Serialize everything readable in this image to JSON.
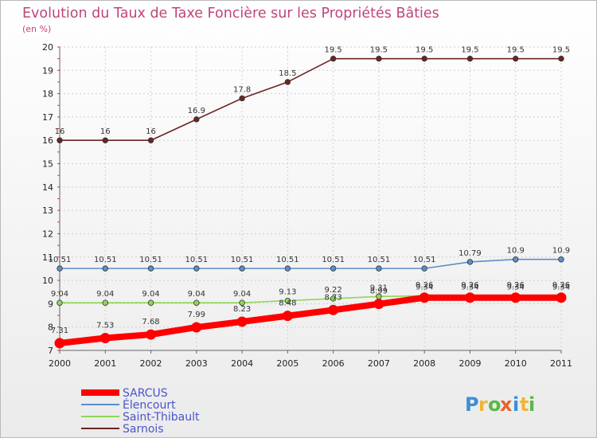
{
  "chart_data": {
    "type": "line",
    "title": "Evolution du Taux de Taxe Foncière sur les Propriétés Bâties",
    "subtitle": "(en %)",
    "xlabel": "",
    "ylabel": "",
    "ylim": [
      7,
      20
    ],
    "x": [
      "2000",
      "2001",
      "2002",
      "2003",
      "2004",
      "2005",
      "2006",
      "2007",
      "2008",
      "2009",
      "2010",
      "2011"
    ],
    "y_ticks": [
      7,
      8,
      9,
      10,
      11,
      12,
      13,
      14,
      15,
      16,
      17,
      18,
      19,
      20
    ],
    "grid": true,
    "legend_position": "bottom-left",
    "series": [
      {
        "name": "SARCUS",
        "color": "#ff0000",
        "values": [
          7.31,
          7.53,
          7.68,
          7.99,
          8.23,
          8.48,
          8.73,
          8.99,
          9.26,
          9.26,
          9.26,
          9.26
        ],
        "labels": [
          "7.31",
          "7.53",
          "7.68",
          "7.99",
          "8.23",
          "8.48",
          "8.73",
          "8.99",
          "9.26",
          "9.26",
          "9.26",
          "9.26"
        ]
      },
      {
        "name": "Élencourt",
        "color": "#5b8fc9",
        "values": [
          10.51,
          10.51,
          10.51,
          10.51,
          10.51,
          10.51,
          10.51,
          10.51,
          10.51,
          10.79,
          10.9,
          10.9
        ],
        "labels": [
          "10.51",
          "10.51",
          "10.51",
          "10.51",
          "10.51",
          "10.51",
          "10.51",
          "10.51",
          "10.51",
          "10.79",
          "10.9",
          "10.9"
        ]
      },
      {
        "name": "Saint-Thibault",
        "color": "#8ed65a",
        "values": [
          9.04,
          9.04,
          9.04,
          9.04,
          9.04,
          9.13,
          9.22,
          9.31,
          9.34,
          9.34,
          9.34,
          9.34
        ],
        "labels": [
          "9.04",
          "9.04",
          "9.04",
          "9.04",
          "9.04",
          "9.13",
          "9.22",
          "9.31",
          "9.34",
          "9.34",
          "9.34",
          "9.34"
        ]
      },
      {
        "name": "Sarnois",
        "color": "#6b2424",
        "values": [
          16,
          16,
          16,
          16.9,
          17.8,
          18.5,
          19.5,
          19.5,
          19.5,
          19.5,
          19.5,
          19.5
        ],
        "labels": [
          "16",
          "16",
          "16",
          "16.9",
          "17.8",
          "18.5",
          "19.5",
          "19.5",
          "19.5",
          "19.5",
          "19.5",
          "19.5"
        ]
      }
    ]
  },
  "logo": {
    "letters": [
      "P",
      "r",
      "o",
      "x",
      "i",
      "t",
      "i"
    ],
    "colors": [
      "#3d8fd6",
      "#f0b63a",
      "#58b947",
      "#e8632c",
      "#3d8fd6",
      "#f0b63a",
      "#58b947"
    ]
  }
}
